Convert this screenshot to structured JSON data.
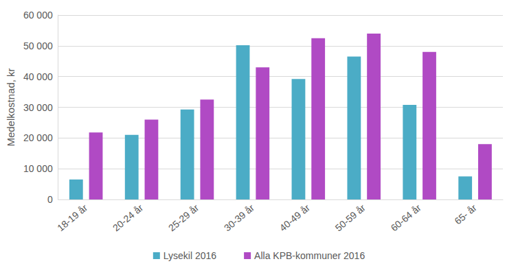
{
  "chart_data": {
    "type": "bar",
    "y_label": "Medelkostnad, kr",
    "categories": [
      "18-19 år",
      "20-24 år",
      "25-29 år",
      "30-39 år",
      "40-49 år",
      "50-59 år",
      "60-64 år",
      "65- år"
    ],
    "series": [
      {
        "name": "Lysekil 2016",
        "color": "#4bacc6",
        "values": [
          6500,
          21000,
          29300,
          50200,
          39200,
          46500,
          30800,
          7500
        ]
      },
      {
        "name": "Alla KPB-kommuner 2016",
        "color": "#b04ac4",
        "values": [
          21800,
          26000,
          32500,
          43000,
          52500,
          54000,
          48000,
          18000
        ]
      }
    ],
    "ylim": [
      0,
      60000
    ],
    "yticks": [
      0,
      {
        "value": 10000,
        "label": "10 000"
      },
      {
        "value": 20000,
        "label": "20 000"
      },
      {
        "value": 30000,
        "label": "30 000"
      },
      {
        "value": 40000,
        "label": "40 000"
      },
      {
        "value": 50000,
        "label": "50 000"
      },
      {
        "value": 60000,
        "label": "60 000"
      }
    ],
    "grid": true,
    "legend": "bottom"
  }
}
